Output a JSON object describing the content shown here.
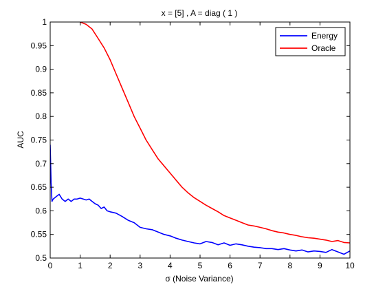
{
  "chart_data": {
    "type": "line",
    "title": "x = [5] ,  A = diag ( 1 )",
    "xlabel": "σ (Noise Variance)",
    "ylabel": "AUC",
    "xlim": [
      0,
      10
    ],
    "ylim": [
      0.5,
      1
    ],
    "xticks": [
      0,
      1,
      2,
      3,
      4,
      5,
      6,
      7,
      8,
      9,
      10
    ],
    "xtick_labels": [
      "0",
      "1",
      "2",
      "3",
      "4",
      "5",
      "6",
      "7",
      "8",
      "9",
      "10"
    ],
    "yticks": [
      0.5,
      0.55,
      0.6,
      0.65,
      0.7,
      0.75,
      0.8,
      0.85,
      0.9,
      0.95,
      1
    ],
    "ytick_labels": [
      "0.5",
      "0.55",
      "0.6",
      "0.65",
      "0.7",
      "0.75",
      "0.8",
      "0.85",
      "0.9",
      "0.95",
      "1"
    ],
    "grid": false,
    "legend_position": "top-right",
    "series": [
      {
        "name": "Energy",
        "color": "#0000ff",
        "x": [
          0,
          0.03,
          0.06,
          0.1,
          0.2,
          0.3,
          0.4,
          0.5,
          0.6,
          0.7,
          0.8,
          0.9,
          1.0,
          1.1,
          1.2,
          1.3,
          1.4,
          1.5,
          1.6,
          1.7,
          1.8,
          1.9,
          2.0,
          2.2,
          2.4,
          2.6,
          2.8,
          3.0,
          3.2,
          3.4,
          3.6,
          3.8,
          4.0,
          4.2,
          4.4,
          4.6,
          4.8,
          5.0,
          5.2,
          5.4,
          5.6,
          5.8,
          6.0,
          6.2,
          6.4,
          6.6,
          6.8,
          7.0,
          7.2,
          7.4,
          7.6,
          7.8,
          8.0,
          8.2,
          8.4,
          8.6,
          8.8,
          9.0,
          9.2,
          9.4,
          9.6,
          9.8,
          10.0
        ],
        "y": [
          0.74,
          0.66,
          0.62,
          0.625,
          0.63,
          0.635,
          0.625,
          0.62,
          0.625,
          0.62,
          0.625,
          0.625,
          0.627,
          0.625,
          0.623,
          0.625,
          0.62,
          0.615,
          0.612,
          0.605,
          0.608,
          0.6,
          0.598,
          0.595,
          0.588,
          0.58,
          0.575,
          0.565,
          0.562,
          0.56,
          0.555,
          0.55,
          0.547,
          0.542,
          0.538,
          0.535,
          0.532,
          0.53,
          0.535,
          0.533,
          0.528,
          0.532,
          0.527,
          0.53,
          0.528,
          0.525,
          0.523,
          0.522,
          0.52,
          0.52,
          0.518,
          0.52,
          0.517,
          0.515,
          0.517,
          0.513,
          0.515,
          0.514,
          0.512,
          0.518,
          0.513,
          0.508,
          0.515
        ]
      },
      {
        "name": "Oracle",
        "color": "#ff0000",
        "x": [
          1.0,
          1.2,
          1.4,
          1.6,
          1.8,
          2.0,
          2.2,
          2.4,
          2.6,
          2.8,
          3.0,
          3.2,
          3.4,
          3.6,
          3.8,
          4.0,
          4.2,
          4.4,
          4.6,
          4.8,
          5.0,
          5.2,
          5.4,
          5.6,
          5.8,
          6.0,
          6.2,
          6.4,
          6.6,
          6.8,
          7.0,
          7.2,
          7.4,
          7.6,
          7.8,
          8.0,
          8.2,
          8.4,
          8.6,
          8.8,
          9.0,
          9.2,
          9.4,
          9.6,
          9.8,
          10.0
        ],
        "y": [
          1.0,
          0.995,
          0.985,
          0.965,
          0.945,
          0.92,
          0.89,
          0.86,
          0.83,
          0.8,
          0.775,
          0.75,
          0.73,
          0.71,
          0.695,
          0.68,
          0.665,
          0.65,
          0.638,
          0.628,
          0.62,
          0.612,
          0.605,
          0.598,
          0.59,
          0.585,
          0.58,
          0.575,
          0.57,
          0.568,
          0.565,
          0.562,
          0.558,
          0.555,
          0.553,
          0.55,
          0.548,
          0.545,
          0.543,
          0.542,
          0.54,
          0.538,
          0.535,
          0.537,
          0.533,
          0.532
        ]
      }
    ]
  }
}
